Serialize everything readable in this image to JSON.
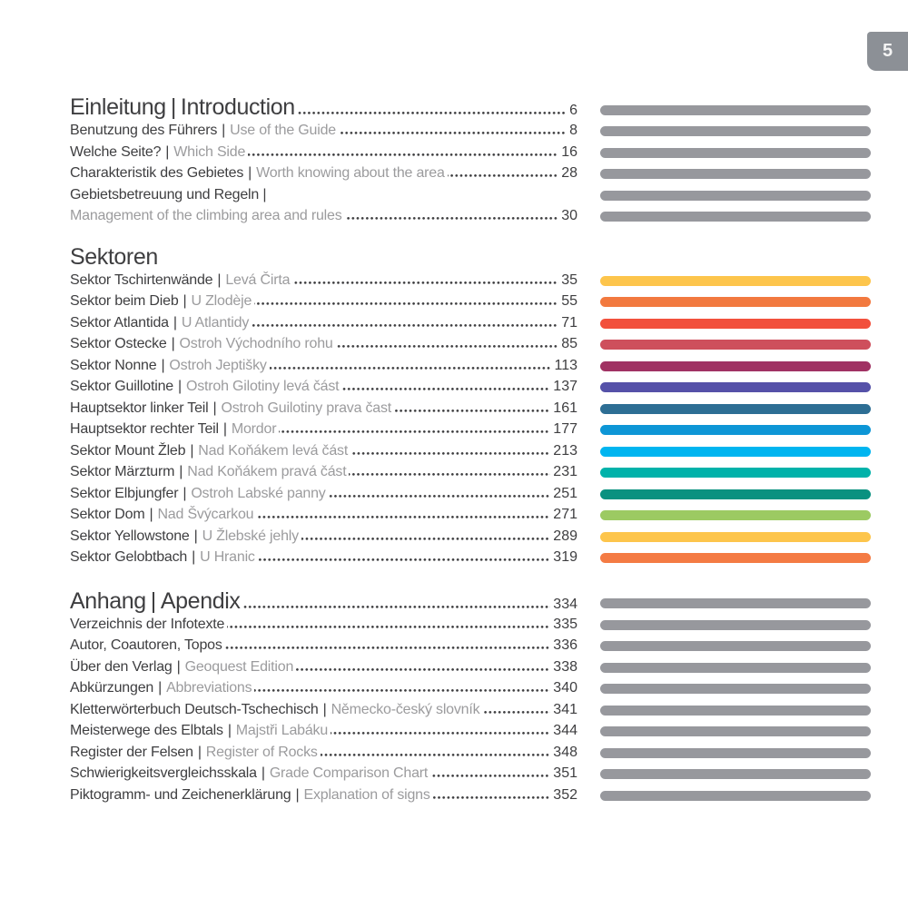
{
  "page_badge": {
    "number": "5",
    "background": "#8C9096",
    "text_color": "#F4F4F4"
  },
  "separator": "|",
  "colors": {
    "primary_text": "#3E3E40",
    "secondary_text": "#9B9B9D",
    "leader_dots": "#3E3E40",
    "gray_bar": "#97989D"
  },
  "sections": [
    {
      "id": "einleitung",
      "lines": [
        {
          "type": "heading",
          "primary": "Einleitung",
          "secondary": "Introduction",
          "page": "6",
          "dots": true,
          "bar": "#97989D"
        },
        {
          "type": "entry",
          "primary": "Benutzung des Führers",
          "secondary": "Use of the Guide",
          "page": "8",
          "dots": true,
          "bar": "#97989D"
        },
        {
          "type": "entry",
          "primary": "Welche Seite?",
          "secondary": "Which Side",
          "page": "16",
          "dots": true,
          "bar": "#97989D"
        },
        {
          "type": "entry",
          "primary": "Charakteristik des Gebietes",
          "secondary": "Worth knowing about the area",
          "page": "28",
          "dots": true,
          "bar": "#97989D"
        },
        {
          "type": "entry",
          "primary": "Gebietsbetreuung und Regeln |",
          "secondary": "",
          "page": "",
          "dots": false,
          "bar": "#97989D"
        },
        {
          "type": "entry",
          "primary": "",
          "secondary": "Management of the climbing area and rules",
          "page": "30",
          "dots": true,
          "bar": "#97989D"
        }
      ]
    },
    {
      "id": "sektoren",
      "lines": [
        {
          "type": "heading",
          "primary": "Sektoren",
          "secondary": "",
          "page": "",
          "dots": false,
          "bar": ""
        },
        {
          "type": "entry",
          "primary": "Sektor Tschirtenwände",
          "secondary": "Levá Čirta",
          "page": "35",
          "dots": true,
          "bar": "#FDC54C"
        },
        {
          "type": "entry",
          "primary": "Sektor beim Dieb",
          "secondary": "U Zlodèje",
          "page": "55",
          "dots": true,
          "bar": "#F2793F"
        },
        {
          "type": "entry",
          "primary": "Sektor Atlantida",
          "secondary": "U Atlantidy",
          "page": "71",
          "dots": true,
          "bar": "#F2503C"
        },
        {
          "type": "entry",
          "primary": "Sektor Ostecke",
          "secondary": "Ostroh Východního rohu",
          "page": "85",
          "dots": true,
          "bar": "#CE4F5C"
        },
        {
          "type": "entry",
          "primary": "Sektor Nonne",
          "secondary": "Ostroh Jeptišky",
          "page": "113",
          "dots": true,
          "bar": "#A03263"
        },
        {
          "type": "entry",
          "primary": "Sektor Guillotine",
          "secondary": "Ostroh Gilotiny levá část",
          "page": "137",
          "dots": true,
          "bar": "#5551A8"
        },
        {
          "type": "entry",
          "primary": "Hauptsektor linker Teil",
          "secondary": "Ostroh Guilotiny prava čast",
          "page": "161",
          "dots": true,
          "bar": "#2D6E94"
        },
        {
          "type": "entry",
          "primary": "Hauptsektor rechter Teil",
          "secondary": "Mordor",
          "page": "177",
          "dots": true,
          "bar": "#0D96D6"
        },
        {
          "type": "entry",
          "primary": "Sektor Mount Žleb",
          "secondary": "Nad Koňákem levá část",
          "page": "213",
          "dots": true,
          "bar": "#00B5F0"
        },
        {
          "type": "entry",
          "primary": "Sektor Märzturm",
          "secondary": "Nad Koňákem pravá část",
          "page": "231",
          "dots": true,
          "bar": "#00B2AA"
        },
        {
          "type": "entry",
          "primary": "Sektor Elbjungfer",
          "secondary": "Ostroh Labské panny",
          "page": "251",
          "dots": true,
          "bar": "#0A9180"
        },
        {
          "type": "entry",
          "primary": "Sektor Dom",
          "secondary": "Nad Švýcarkou",
          "page": "271",
          "dots": true,
          "bar": "#9CCA62"
        },
        {
          "type": "entry",
          "primary": "Sektor Yellowstone",
          "secondary": "U Žlebské jehly",
          "page": "289",
          "dots": true,
          "bar": "#FDC54C"
        },
        {
          "type": "entry",
          "primary": "Sektor Gelobtbach",
          "secondary": "U Hranic",
          "page": "319",
          "dots": true,
          "bar": "#F47B44"
        }
      ]
    },
    {
      "id": "anhang",
      "lines": [
        {
          "type": "heading",
          "primary": "Anhang",
          "secondary": "Apendix",
          "page": "334",
          "dots": true,
          "bar": "#97989D"
        },
        {
          "type": "entry",
          "primary": "Verzeichnis der Infotexte",
          "secondary": "",
          "page": "335",
          "dots": true,
          "bar": "#97989D"
        },
        {
          "type": "entry",
          "primary": "Autor, Coautoren, Topos",
          "secondary": "",
          "page": "336",
          "dots": true,
          "bar": "#97989D"
        },
        {
          "type": "entry",
          "primary": "Über den Verlag",
          "secondary": "Geoquest Edition",
          "page": "338",
          "dots": true,
          "bar": "#97989D"
        },
        {
          "type": "entry",
          "primary": "Abkürzungen",
          "secondary": "Abbreviations",
          "page": "340",
          "dots": true,
          "bar": "#97989D"
        },
        {
          "type": "entry",
          "primary": "Kletterwörterbuch Deutsch-Tschechisch",
          "secondary": "Německo-český slovník",
          "page": "341",
          "dots": true,
          "bar": "#97989D"
        },
        {
          "type": "entry",
          "primary": "Meisterwege des Elbtals",
          "secondary": "Majstři Labáku",
          "page": "344",
          "dots": true,
          "bar": "#97989D"
        },
        {
          "type": "entry",
          "primary": "Register der Felsen",
          "secondary": "Register of Rocks",
          "page": "348",
          "dots": true,
          "bar": "#97989D"
        },
        {
          "type": "entry",
          "primary": "Schwierigkeitsvergleichsskala",
          "secondary": "Grade Comparison Chart",
          "page": "351",
          "dots": true,
          "bar": "#97989D"
        },
        {
          "type": "entry",
          "primary": "Piktogramm- und Zeichenerklärung",
          "secondary": "Explanation of signs",
          "page": "352",
          "dots": true,
          "bar": "#97989D"
        }
      ]
    }
  ]
}
